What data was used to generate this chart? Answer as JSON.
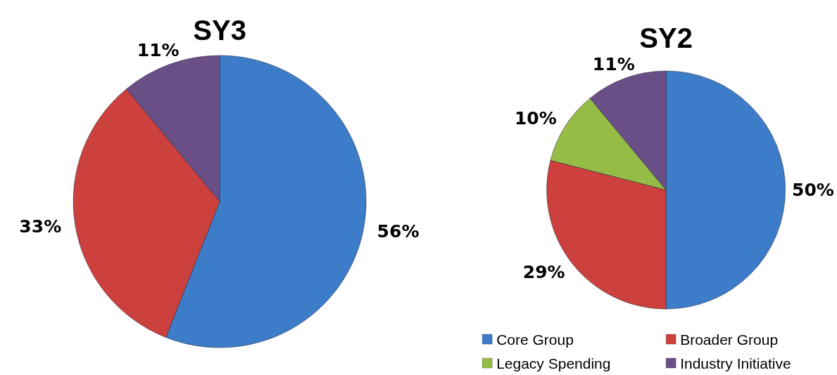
{
  "chart_data": [
    {
      "type": "pie",
      "title": "SY3",
      "categories": [
        null,
        null,
        null
      ],
      "values": [
        56,
        33,
        11
      ],
      "colors": [
        "#3c7cc9",
        "#cc403d",
        "#6a4f86"
      ],
      "value_labels": [
        "56%",
        "33%",
        "11%"
      ],
      "legend": false
    },
    {
      "type": "pie",
      "title": "SY2",
      "categories": [
        "Core Group",
        "Broader Group",
        "Legacy Spending",
        "Industry Initiative"
      ],
      "values": [
        50,
        29,
        10,
        11
      ],
      "colors": [
        "#3c7cc9",
        "#cc403d",
        "#95bc45",
        "#6a4f86"
      ],
      "value_labels": [
        "50%",
        "29%",
        "10%",
        "11%"
      ],
      "legend": "bottom"
    }
  ]
}
